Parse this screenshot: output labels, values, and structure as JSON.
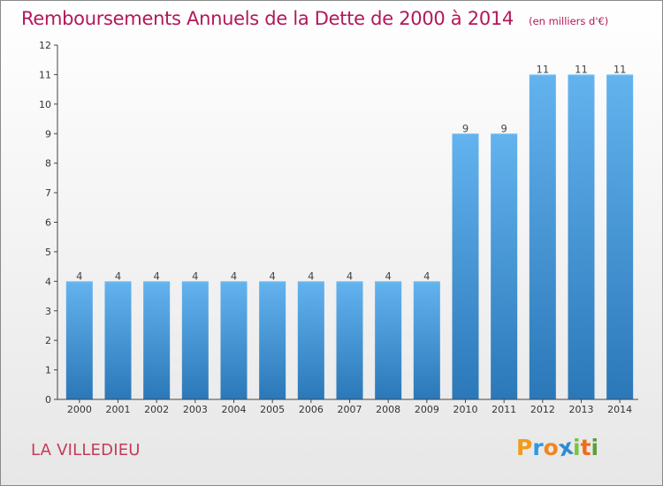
{
  "title": "Remboursements Annuels de la Dette de 2000 à 2014",
  "unit_note": "(en milliers d'€)",
  "town": "LA VILLEDIEU",
  "logo": {
    "text": "Proxiti",
    "letters": [
      "P",
      "r",
      "o",
      "x",
      "i",
      "t",
      "i"
    ],
    "colors": [
      "#f39a1a",
      "#2b9be3",
      "#f2861f",
      "#2f8ad6",
      "#7cc242",
      "#ef6c1b",
      "#5b9f3c"
    ]
  },
  "colors": {
    "title": "#b2185a",
    "town": "#c43b59",
    "bar_top": "#63b3ef",
    "bar_bottom": "#2b78b8",
    "axis": "#444444"
  },
  "chart_data": {
    "type": "bar",
    "categories": [
      "2000",
      "2001",
      "2002",
      "2003",
      "2004",
      "2005",
      "2006",
      "2007",
      "2008",
      "2009",
      "2010",
      "2011",
      "2012",
      "2013",
      "2014"
    ],
    "values": [
      4,
      4,
      4,
      4,
      4,
      4,
      4,
      4,
      4,
      4,
      9,
      9,
      11,
      11,
      11
    ],
    "value_labels": [
      "4",
      "4",
      "4",
      "4",
      "4",
      "4",
      "4",
      "4",
      "4",
      "4",
      "9",
      "9",
      "11",
      "11",
      "11"
    ],
    "yticks": [
      "0",
      "1",
      "2",
      "3",
      "4",
      "5",
      "6",
      "7",
      "8",
      "9",
      "10",
      "11",
      "12"
    ],
    "ylim": [
      0,
      12
    ],
    "grid": false,
    "legend": "none",
    "xlabel": "",
    "ylabel": ""
  }
}
